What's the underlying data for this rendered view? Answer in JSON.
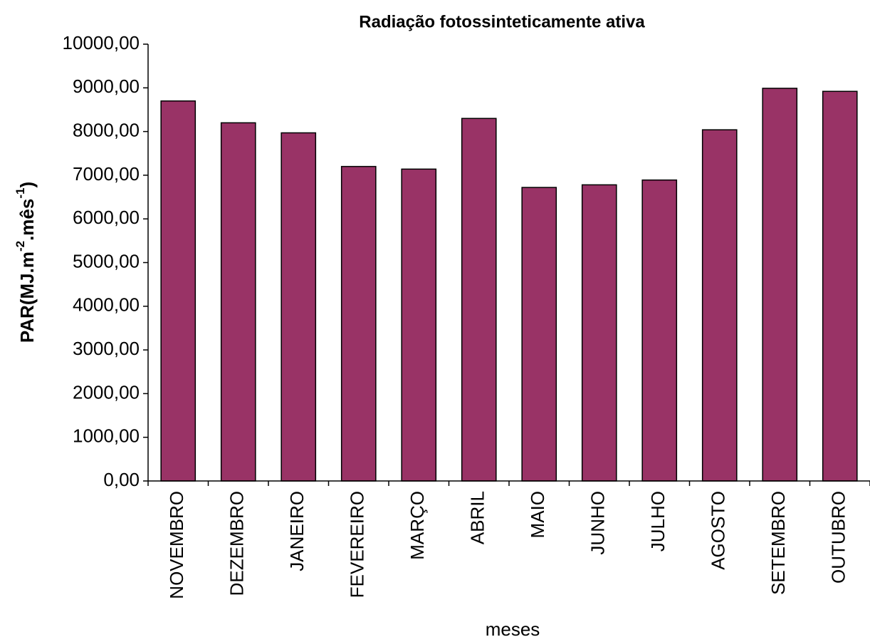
{
  "chart_data": {
    "type": "bar",
    "title": "Radiação fotossinteticamente ativa",
    "x_label": "meses",
    "y_label": [
      "PAR(MJ.m",
      "-2",
      ".mês",
      "-1",
      ")"
    ],
    "categories": [
      "NOVEMBRO",
      "DEZEMBRO",
      "JANEIRO",
      "FEVEREIRO",
      "MARÇO",
      "ABRIL",
      "MAIO",
      "JUNHO",
      "JULHO",
      "AGOSTO",
      "SETEMBRO",
      "OUTUBRO"
    ],
    "values": [
      8700,
      8200,
      7970,
      7200,
      7140,
      8300,
      6720,
      6780,
      6890,
      8040,
      8990,
      8920
    ],
    "color": "#993366",
    "ylim": [
      0,
      10000
    ],
    "yticks": [
      {
        "value": 0,
        "label": "0,00"
      },
      {
        "value": 1000,
        "label": "1000,00"
      },
      {
        "value": 2000,
        "label": "2000,00"
      },
      {
        "value": 3000,
        "label": "3000,00"
      },
      {
        "value": 4000,
        "label": "4000,00"
      },
      {
        "value": 5000,
        "label": "5000,00"
      },
      {
        "value": 6000,
        "label": "6000,00"
      },
      {
        "value": 7000,
        "label": "7000,00"
      },
      {
        "value": 8000,
        "label": "8000,00"
      },
      {
        "value": 9000,
        "label": "9000,00"
      },
      {
        "value": 10000,
        "label": "10000,00"
      }
    ],
    "grid": false
  }
}
